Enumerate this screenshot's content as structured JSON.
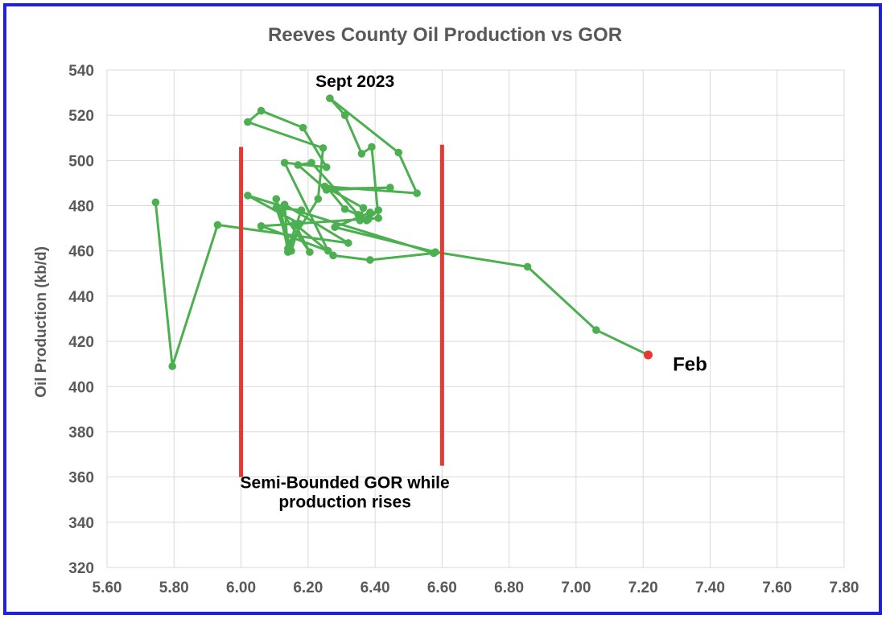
{
  "chart_data": {
    "type": "scatter",
    "title": "Reeves County Oil Production vs GOR",
    "xlabel": "",
    "ylabel": "Oil Production (kb/d)",
    "xlim": [
      5.6,
      7.8
    ],
    "ylim": [
      320,
      540
    ],
    "x_ticks": [
      "5.60",
      "5.80",
      "6.00",
      "6.20",
      "6.40",
      "6.60",
      "6.80",
      "7.00",
      "7.20",
      "7.40",
      "7.60",
      "7.80"
    ],
    "y_ticks": [
      "320",
      "340",
      "360",
      "380",
      "400",
      "420",
      "440",
      "460",
      "480",
      "500",
      "520",
      "540"
    ],
    "grid": true,
    "series": [
      {
        "color": "#4caf50",
        "points": [
          [
            5.745,
            481.5
          ],
          [
            5.795,
            409
          ],
          [
            5.93,
            471.5
          ],
          [
            6.32,
            463.5
          ],
          [
            6.13,
            480.5
          ],
          [
            6.14,
            459.5
          ],
          [
            6.12,
            477.5
          ],
          [
            6.205,
            459.5
          ],
          [
            6.16,
            472
          ],
          [
            6.275,
            458
          ],
          [
            6.385,
            456
          ],
          [
            6.575,
            459
          ],
          [
            6.02,
            484.5
          ],
          [
            6.175,
            472
          ],
          [
            6.15,
            460
          ],
          [
            6.105,
            479
          ],
          [
            6.18,
            478
          ],
          [
            6.14,
            461
          ],
          [
            6.105,
            483
          ],
          [
            6.145,
            463
          ],
          [
            6.23,
            483
          ],
          [
            6.245,
            505.5
          ],
          [
            6.02,
            517
          ],
          [
            6.06,
            522
          ],
          [
            6.185,
            514.5
          ],
          [
            6.255,
            497
          ],
          [
            6.13,
            499
          ],
          [
            6.26,
            460
          ],
          [
            6.06,
            471
          ],
          [
            6.41,
            474.5
          ],
          [
            6.39,
            506
          ],
          [
            6.36,
            503
          ],
          [
            6.31,
            520
          ],
          [
            6.265,
            527.5
          ],
          [
            6.47,
            503.5
          ],
          [
            6.525,
            485.5
          ],
          [
            6.25,
            488.5
          ],
          [
            6.365,
            479
          ],
          [
            6.355,
            473.5
          ],
          [
            6.41,
            478
          ],
          [
            6.375,
            473.5
          ],
          [
            6.35,
            476
          ],
          [
            6.21,
            499
          ],
          [
            6.17,
            498
          ],
          [
            6.255,
            487
          ],
          [
            6.445,
            488
          ],
          [
            6.26,
            487.5
          ],
          [
            6.31,
            478.5
          ],
          [
            6.38,
            474
          ],
          [
            6.385,
            477
          ],
          [
            6.28,
            470.5
          ],
          [
            6.58,
            459.5
          ],
          [
            6.855,
            453
          ],
          [
            7.06,
            425
          ],
          [
            7.215,
            414
          ]
        ]
      }
    ],
    "highlight_point": {
      "x": 7.215,
      "y": 414,
      "color": "#e53935"
    },
    "vertical_lines": [
      {
        "x": 6.0,
        "y_from": 360,
        "y_to": 506,
        "color": "#e53935"
      },
      {
        "x": 6.6,
        "y_from": 365,
        "y_to": 507,
        "color": "#e53935"
      }
    ],
    "annotations": [
      {
        "text": "Sept 2023",
        "x": 6.34,
        "y": 532.5
      },
      {
        "text": "Feb",
        "x": 7.34,
        "y": 407
      },
      {
        "text": "Semi-Bounded GOR while",
        "x": 6.31,
        "y": 355
      },
      {
        "text": "production rises",
        "x": 6.31,
        "y": 346.5
      }
    ]
  }
}
